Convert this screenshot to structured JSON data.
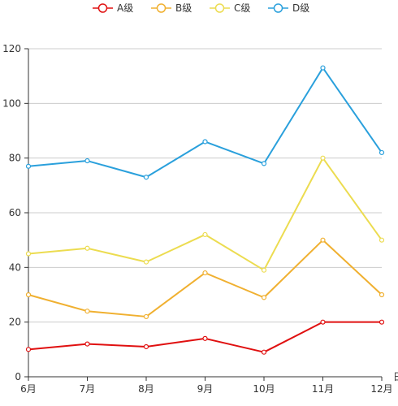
{
  "chart_data": {
    "type": "line",
    "title": "",
    "xlabel": "日",
    "ylabel": "",
    "categories": [
      "6月",
      "7月",
      "8月",
      "9月",
      "10月",
      "11月",
      "12月"
    ],
    "ylim": [
      0,
      120
    ],
    "yticks": [
      0,
      20,
      40,
      60,
      80,
      100,
      120
    ],
    "grid": true,
    "legend_position": "top-center",
    "series": [
      {
        "name": "A级",
        "color": "#e01010",
        "values": [
          10,
          12,
          11,
          14,
          9,
          20,
          20
        ]
      },
      {
        "name": "B级",
        "color": "#f0b030",
        "values": [
          30,
          24,
          22,
          38,
          29,
          50,
          30
        ]
      },
      {
        "name": "C级",
        "color": "#ecdc50",
        "values": [
          45,
          47,
          42,
          52,
          39,
          80,
          50
        ]
      },
      {
        "name": "D级",
        "color": "#2aa0dc",
        "values": [
          77,
          79,
          73,
          86,
          78,
          113,
          82
        ]
      }
    ]
  }
}
